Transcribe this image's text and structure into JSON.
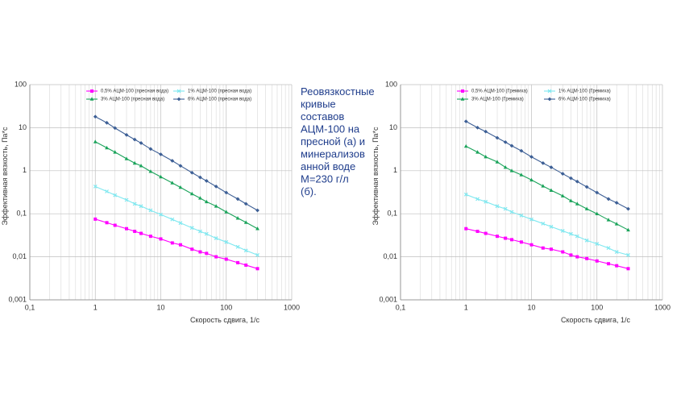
{
  "chart_data": [
    {
      "type": "line",
      "xlabel": "Скорость сдвига, 1/с",
      "ylabel": "Эффективная вязкость, Па*с",
      "xscale": "log",
      "yscale": "log",
      "grid": true,
      "x_minor_grid": true,
      "legend": "top",
      "xlim": [
        0.1,
        1000
      ],
      "ylim": [
        0.001,
        100
      ],
      "xticks": [
        {
          "value": 0.1,
          "label": "0,1"
        },
        1,
        10,
        100,
        1000
      ],
      "yticks": [
        {
          "value": 0.001,
          "label": "0,001"
        },
        {
          "value": 0.01,
          "label": "0,01"
        },
        {
          "value": 0.1,
          "label": "0,1"
        },
        1,
        10,
        100
      ],
      "x": [
        1,
        1.5,
        2,
        3,
        4,
        5,
        7,
        10,
        15,
        20,
        30,
        40,
        50,
        70,
        100,
        150,
        200,
        300
      ],
      "series": [
        {
          "name": "0,5% АЦМ-100 (пресная вода)",
          "color": "#ff00ff",
          "marker": "square",
          "values": [
            0.075,
            0.062,
            0.054,
            0.045,
            0.039,
            0.035,
            0.03,
            0.026,
            0.021,
            0.019,
            0.015,
            0.013,
            0.012,
            0.01,
            0.0088,
            0.0073,
            0.0064,
            0.0053
          ]
        },
        {
          "name": "1% АЦМ-100 (пресная вода)",
          "color": "#7fe8f0",
          "marker": "cross",
          "values": [
            0.43,
            0.33,
            0.27,
            0.21,
            0.17,
            0.15,
            0.12,
            0.096,
            0.074,
            0.061,
            0.047,
            0.039,
            0.034,
            0.027,
            0.022,
            0.017,
            0.014,
            0.011
          ]
        },
        {
          "name": "3% АЦМ-100 (пресная вода)",
          "color": "#1aa35a",
          "marker": "triangle",
          "values": [
            4.7,
            3.4,
            2.7,
            1.9,
            1.5,
            1.3,
            0.96,
            0.72,
            0.52,
            0.41,
            0.29,
            0.23,
            0.19,
            0.15,
            0.11,
            0.079,
            0.063,
            0.045
          ]
        },
        {
          "name": "6% АЦМ-100 (пресная вода)",
          "color": "#3d5f95",
          "marker": "diamond",
          "values": [
            18,
            13,
            9.8,
            6.8,
            5.3,
            4.4,
            3.2,
            2.4,
            1.7,
            1.3,
            0.9,
            0.7,
            0.58,
            0.43,
            0.31,
            0.22,
            0.17,
            0.12
          ]
        }
      ]
    },
    {
      "type": "line",
      "xlabel": "Скорость сдвига, 1/с",
      "ylabel": "Эффективная вязкость, Па*с",
      "xscale": "log",
      "yscale": "log",
      "grid": true,
      "x_minor_grid": true,
      "legend": "top",
      "xlim": [
        0.1,
        1000
      ],
      "ylim": [
        0.001,
        100
      ],
      "xticks": [
        {
          "value": 0.1,
          "label": "0,1"
        },
        1,
        10,
        100,
        1000
      ],
      "yticks": [
        {
          "value": 0.001,
          "label": "0,001"
        },
        {
          "value": 0.01,
          "label": "0,01"
        },
        {
          "value": 0.1,
          "label": "0,1"
        },
        1,
        10,
        100
      ],
      "x": [
        1,
        1.5,
        2,
        3,
        4,
        5,
        7,
        10,
        15,
        20,
        30,
        40,
        50,
        70,
        100,
        150,
        200,
        300
      ],
      "series": [
        {
          "name": "0,5% АЦМ-100 (Гремиха)",
          "color": "#ff00ff",
          "marker": "square",
          "values": [
            0.045,
            0.039,
            0.035,
            0.03,
            0.027,
            0.025,
            0.022,
            0.019,
            0.016,
            0.015,
            0.013,
            0.011,
            0.01,
            0.0091,
            0.008,
            0.0069,
            0.0062,
            0.0053
          ]
        },
        {
          "name": "1% АЦМ-100 (Гремиха)",
          "color": "#7fe8f0",
          "marker": "cross",
          "values": [
            0.28,
            0.22,
            0.19,
            0.15,
            0.13,
            0.11,
            0.091,
            0.074,
            0.059,
            0.05,
            0.04,
            0.034,
            0.03,
            0.024,
            0.02,
            0.016,
            0.013,
            0.011
          ]
        },
        {
          "name": "3% АЦМ-100 (Гремиха)",
          "color": "#1aa35a",
          "marker": "triangle",
          "values": [
            3.7,
            2.7,
            2.1,
            1.6,
            1.2,
            1.0,
            0.8,
            0.61,
            0.44,
            0.35,
            0.26,
            0.2,
            0.17,
            0.13,
            0.1,
            0.072,
            0.058,
            0.042
          ]
        },
        {
          "name": "6% АЦМ-100 (Гремиха)",
          "color": "#3d5f95",
          "marker": "diamond",
          "values": [
            14,
            10,
            8.1,
            5.8,
            4.6,
            3.8,
            2.9,
            2.1,
            1.5,
            1.2,
            0.85,
            0.67,
            0.56,
            0.42,
            0.31,
            0.22,
            0.18,
            0.13
          ]
        }
      ]
    }
  ],
  "text_block": {
    "lines": [
      "Реовязкостные",
      "кривые",
      "составов",
      "АЦМ-100 на",
      "пресной (а) и",
      "минерализов",
      "анной воде",
      "М=230 г/л",
      "(б)."
    ],
    "color": "#1f3d8c"
  }
}
